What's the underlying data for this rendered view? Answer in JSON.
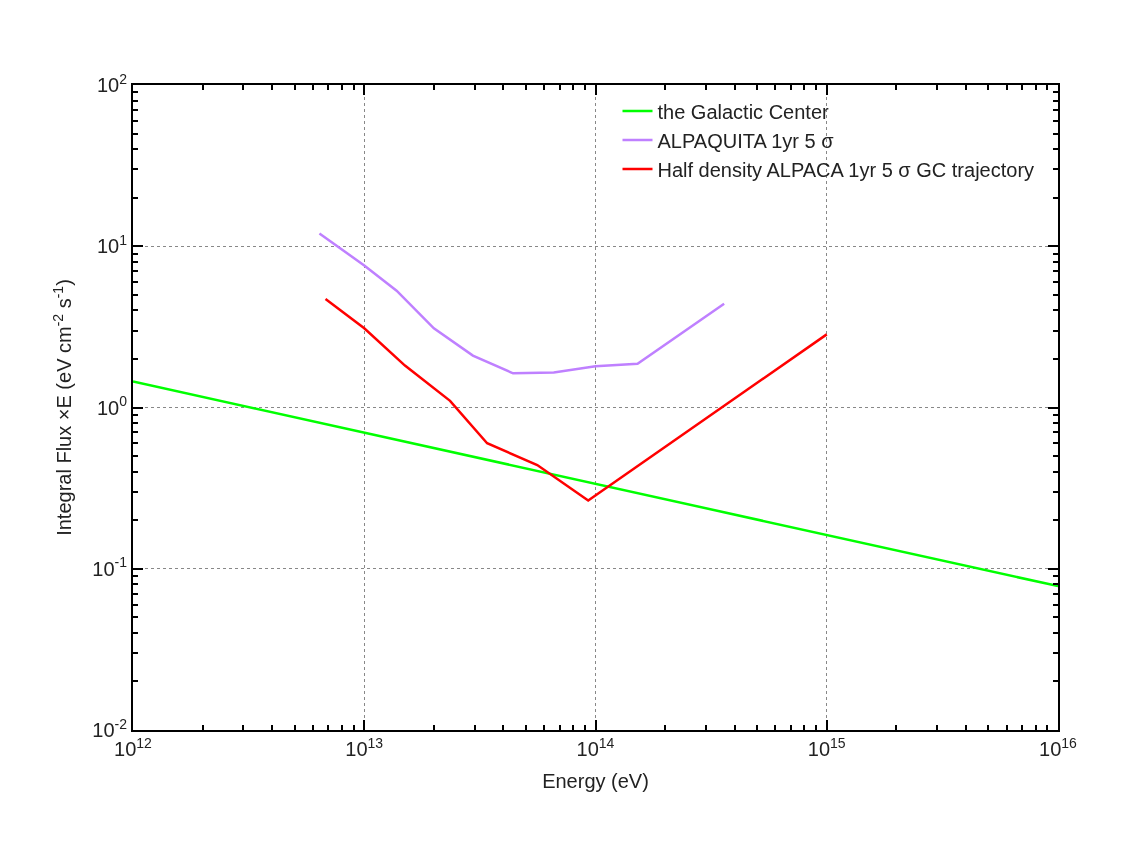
{
  "chart_data": {
    "type": "line",
    "xlabel": "Energy (eV)",
    "ylabel": "Integral Flux ×E (eV cm$^{-2}$ s$^{-1}$)",
    "log": "xy",
    "grid": true,
    "legend": "top right",
    "line_style": "solid",
    "marker": "none",
    "xlim": [
      1000000000000.0,
      1e+16
    ],
    "xticks": [
      {
        "value": 1000000000000.0,
        "label": "10$^{12}$"
      },
      {
        "value": 10000000000000.0,
        "label": "10$^{13}$"
      },
      {
        "value": 100000000000000.0,
        "label": "10$^{14}$"
      },
      {
        "value": 1000000000000000.0,
        "label": "10$^{15}$"
      },
      {
        "value": 1e+16,
        "label": "10$^{16}$"
      }
    ],
    "ylim": [
      0.01,
      100
    ],
    "yticks": [
      {
        "value": 0.01,
        "label": "10$^{-2}$"
      },
      {
        "value": 0.1,
        "label": "10$^{-1}$"
      },
      {
        "value": 1,
        "label": "10$^{0}$"
      },
      {
        "value": 10,
        "label": "10$^{1}$"
      },
      {
        "value": 100,
        "label": "10$^{2}$"
      }
    ],
    "series": [
      {
        "name": "the Galactic Center",
        "color": "#00ff00",
        "x": [
          1000000000000.0,
          1e+16
        ],
        "values": [
          1.45,
          0.078
        ]
      },
      {
        "name": "ALPAQUITA 1yr 5 σ",
        "color": "#bf80ff",
        "x": [
          6400000000000.0,
          10000000000000.0,
          13800000000000.0,
          20000000000000.0,
          29500000000000.0,
          44000000000000.0,
          66000000000000.0,
          100000000000000.0,
          152000000000000.0,
          360000000000000.0
        ],
        "values": [
          12.0,
          7.6,
          5.3,
          3.1,
          2.1,
          1.63,
          1.65,
          1.8,
          1.87,
          4.4
        ]
      },
      {
        "name": "Half density ALPACA 1yr 5 σ GC trajectory",
        "color": "#ff0000",
        "x": [
          6800000000000.0,
          10000000000000.0,
          15000000000000.0,
          23500000000000.0,
          34000000000000.0,
          56000000000000.0,
          93000000000000.0,
          1000000000000000.0
        ],
        "values": [
          4.7,
          3.1,
          1.82,
          1.1,
          0.6,
          0.44,
          0.265,
          2.84
        ]
      }
    ]
  }
}
